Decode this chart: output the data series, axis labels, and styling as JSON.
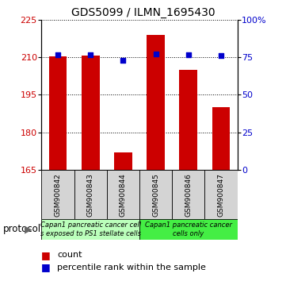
{
  "title": "GDS5099 / ILMN_1695430",
  "samples": [
    "GSM900842",
    "GSM900843",
    "GSM900844",
    "GSM900845",
    "GSM900846",
    "GSM900847"
  ],
  "counts": [
    210.5,
    210.8,
    172.0,
    219.0,
    205.0,
    190.0
  ],
  "percentiles": [
    76.5,
    76.5,
    73.0,
    77.0,
    76.5,
    76.0
  ],
  "ylim_left": [
    165,
    225
  ],
  "ylim_right": [
    0,
    100
  ],
  "yticks_left": [
    165,
    180,
    195,
    210,
    225
  ],
  "yticks_right": [
    0,
    25,
    50,
    75,
    100
  ],
  "ytick_labels_right": [
    "0",
    "25",
    "50",
    "75",
    "100%"
  ],
  "bar_color": "#cc0000",
  "dot_color": "#0000cc",
  "protocol_groups": [
    {
      "label": "Capan1 pancreatic cancer cell\ns exposed to PS1 stellate cells",
      "samples": [
        0,
        1,
        2
      ],
      "color": "#bbffbb"
    },
    {
      "label": "Capan1 pancreatic cancer\ncells only",
      "samples": [
        3,
        4,
        5
      ],
      "color": "#44ee44"
    }
  ],
  "protocol_label": "protocol",
  "legend_count_label": "count",
  "legend_percentile_label": "percentile rank within the sample",
  "title_fontsize": 10,
  "tick_fontsize": 8,
  "label_fontsize": 6.5,
  "prot_fontsize": 6.0,
  "legend_fontsize": 8
}
